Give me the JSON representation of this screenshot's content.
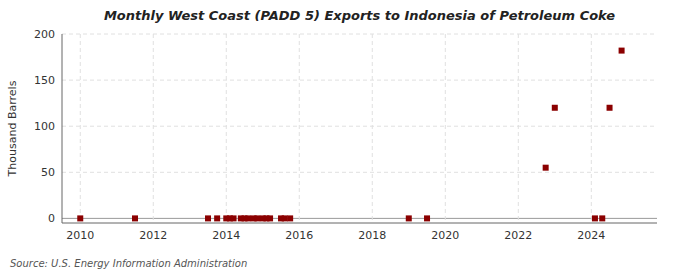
{
  "chart_data": {
    "type": "scatter",
    "title": "Monthly West Coast (PADD 5) Exports to Indonesia of Petroleum Coke",
    "ylabel": "Thousand Barrels",
    "source": "Source: U.S. Energy Information Administration",
    "x": [
      2010.0,
      2011.5,
      2013.5,
      2013.75,
      2014.0,
      2014.1,
      2014.2,
      2014.4,
      2014.5,
      2014.6,
      2014.75,
      2014.85,
      2015.0,
      2015.1,
      2015.2,
      2015.5,
      2015.6,
      2015.75,
      2019.0,
      2019.5,
      2022.75,
      2023.0,
      2024.1,
      2024.3,
      2024.5,
      2024.83
    ],
    "values": [
      0,
      0,
      0,
      0,
      0,
      0,
      0,
      0,
      0,
      0,
      0,
      0,
      0,
      0,
      0,
      0,
      0,
      0,
      0,
      0,
      55,
      120,
      0,
      0,
      120,
      182
    ],
    "color": "#8b0000",
    "marker": "square",
    "xlim": [
      2009.5,
      2025.8
    ],
    "xticks": [
      2010,
      2012,
      2014,
      2016,
      2018,
      2020,
      2022,
      2024
    ],
    "ylim": [
      -5,
      200
    ],
    "yticks": [
      0,
      50,
      100,
      150,
      200
    ],
    "grid": true
  }
}
